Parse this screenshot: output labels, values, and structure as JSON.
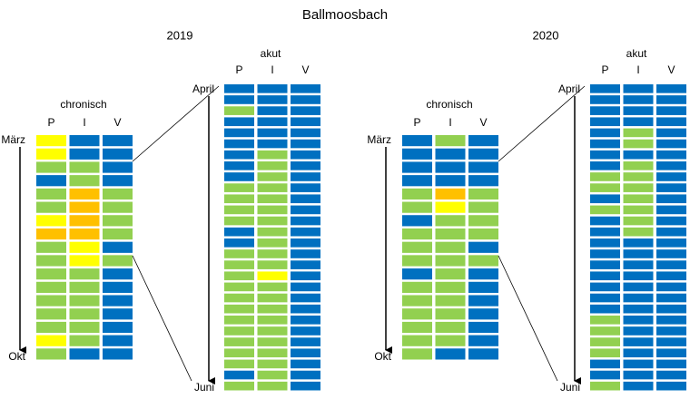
{
  "title": "Ballmoosbach",
  "columns": [
    "P",
    "I",
    "V"
  ],
  "colors": {
    "B": "#0070c0",
    "G": "#92d050",
    "Y": "#ffff00",
    "O": "#ffc000"
  },
  "panels": [
    {
      "year": "2019",
      "chronisch": {
        "label": "chronisch",
        "start": "März",
        "end": "Okt",
        "rows": [
          "YBB",
          "YBB",
          "GGB",
          "BGB",
          "GOG",
          "GOG",
          "YOG",
          "OOG",
          "GYB",
          "GYG",
          "GGB",
          "GGB",
          "GGB",
          "GGB",
          "GGB",
          "YGB",
          "GBB"
        ]
      },
      "akut": {
        "label": "akut",
        "start": "April",
        "end": "Juni",
        "rows": [
          "BBB",
          "BBB",
          "GBB",
          "BBB",
          "BBB",
          "BBB",
          "BGB",
          "BGB",
          "BGB",
          "GGB",
          "GGB",
          "GGB",
          "GGB",
          "BGB",
          "BGB",
          "GGB",
          "GGB",
          "GYB",
          "GGB",
          "GGB",
          "GGB",
          "GGB",
          "GGB",
          "GGB",
          "GGB",
          "GGB",
          "BGB",
          "GGB"
        ]
      }
    },
    {
      "year": "2020",
      "chronisch": {
        "label": "chronisch",
        "start": "März",
        "end": "Okt",
        "rows": [
          "BGB",
          "BBB",
          "BBB",
          "BBB",
          "GOG",
          "GYG",
          "BGG",
          "GGG",
          "GGB",
          "GGG",
          "BGB",
          "GGB",
          "GGB",
          "GGB",
          "GGB",
          "GGB",
          "GBB"
        ]
      },
      "akut": {
        "label": "akut",
        "start": "April",
        "end": "Juni",
        "rows": [
          "BBB",
          "BBB",
          "BBB",
          "BBB",
          "BGB",
          "BGB",
          "BBB",
          "BGB",
          "GGB",
          "GGB",
          "BGB",
          "GGB",
          "BGB",
          "BGB",
          "BBB",
          "BBB",
          "BBB",
          "BBB",
          "BBB",
          "BBB",
          "BBB",
          "GBB",
          "GBB",
          "GBB",
          "GBB",
          "BBB",
          "BBB",
          "GBB"
        ]
      }
    }
  ]
}
